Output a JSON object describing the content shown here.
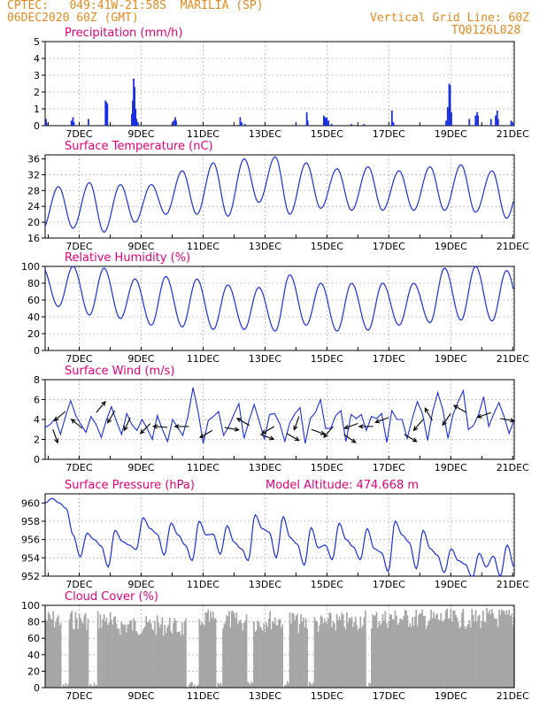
{
  "header": {
    "line1": "CPTEC:   049:41W-21:58S  MARILIA (SP)",
    "line2": "06DEC2020 60Z (GMT)",
    "grid_note": "Vertical Grid Line: 60Z",
    "run_id": "TQ0126L028"
  },
  "colors": {
    "header": "#e08a1e",
    "panel_title": "#e0007a",
    "series": "#1a2fe0",
    "cloud": "#a6a6a6",
    "wind_arrow": "#000000"
  },
  "x_axis": {
    "date_labels": [
      "7DEC",
      "9DEC",
      "11DEC",
      "13DEC",
      "15DEC",
      "17DEC",
      "19DEC",
      "21DEC"
    ],
    "date_positions_days": [
      1,
      3,
      5,
      7,
      9,
      11,
      13,
      15
    ],
    "range_days": [
      -0.1,
      15.05
    ]
  },
  "chart_data": [
    {
      "type": "bar",
      "title": "Precipitation (mm/h)",
      "ylim": [
        0,
        5
      ],
      "yticks": [
        0,
        1,
        2,
        3,
        4,
        5
      ],
      "points": [
        [
          -0.07,
          0.4
        ],
        [
          -0.05,
          0.15
        ],
        [
          0.75,
          0.3
        ],
        [
          0.8,
          0.5
        ],
        [
          0.83,
          0.2
        ],
        [
          1.3,
          0.4
        ],
        [
          1.85,
          1.5
        ],
        [
          1.88,
          1.4
        ],
        [
          1.91,
          1.3
        ],
        [
          2.7,
          0.7
        ],
        [
          2.73,
          1.5
        ],
        [
          2.76,
          2.8
        ],
        [
          2.79,
          2.3
        ],
        [
          2.82,
          1.0
        ],
        [
          2.85,
          0.4
        ],
        [
          2.9,
          0.2
        ],
        [
          4.05,
          0.3
        ],
        [
          4.1,
          0.5
        ],
        [
          4.13,
          0.3
        ],
        [
          6.2,
          0.5
        ],
        [
          6.25,
          0.2
        ],
        [
          6.35,
          0.1
        ],
        [
          8.0,
          0.1
        ],
        [
          8.35,
          0.8
        ],
        [
          8.38,
          0.3
        ],
        [
          8.9,
          0.6
        ],
        [
          8.94,
          0.5
        ],
        [
          8.97,
          0.4
        ],
        [
          9.0,
          0.5
        ],
        [
          9.05,
          0.3
        ],
        [
          9.15,
          0.1
        ],
        [
          9.8,
          0.1
        ],
        [
          10.2,
          0.1
        ],
        [
          11.1,
          0.9
        ],
        [
          11.15,
          0.2
        ],
        [
          12.85,
          0.3
        ],
        [
          12.9,
          1.1
        ],
        [
          12.95,
          2.5
        ],
        [
          12.98,
          2.4
        ],
        [
          13.02,
          0.8
        ],
        [
          13.6,
          0.4
        ],
        [
          13.8,
          0.6
        ],
        [
          13.85,
          0.8
        ],
        [
          13.88,
          0.6
        ],
        [
          14.3,
          0.4
        ],
        [
          14.45,
          0.6
        ],
        [
          14.5,
          0.9
        ],
        [
          14.53,
          0.4
        ],
        [
          14.95,
          0.3
        ],
        [
          15.0,
          0.2
        ]
      ]
    },
    {
      "type": "line",
      "title": "Surface Temperature (nC)",
      "ylim": [
        16,
        37
      ],
      "yticks": [
        16,
        20,
        24,
        28,
        32,
        36
      ],
      "daily_min": [
        18,
        18.5,
        17.5,
        20,
        22,
        22,
        21.5,
        25,
        22,
        23.5,
        23,
        23,
        23,
        23,
        22.5,
        21
      ],
      "daily_max": [
        29,
        30,
        29.5,
        29.5,
        33,
        35,
        36,
        36.5,
        35,
        33.5,
        34,
        33,
        34,
        34.5,
        33,
        32.5
      ]
    },
    {
      "type": "line",
      "title": "Relative Humidity (%)",
      "ylim": [
        0,
        100
      ],
      "yticks": [
        0,
        20,
        40,
        60,
        80,
        100
      ],
      "daily_min": [
        52,
        42,
        38,
        30,
        28,
        25,
        25,
        23,
        30,
        23,
        24,
        30,
        33,
        36,
        35,
        35,
        38
      ],
      "daily_max": [
        100,
        100,
        98,
        85,
        88,
        85,
        78,
        75,
        90,
        80,
        80,
        80,
        80,
        98,
        100,
        95,
        62
      ]
    },
    {
      "type": "line",
      "title": "Surface Wind (m/s)",
      "ylim": [
        0,
        8
      ],
      "yticks": [
        0,
        2,
        4,
        6,
        8
      ],
      "speed": [
        3.2,
        3.5,
        4.1,
        2.5,
        4.3,
        5.9,
        4.4,
        3.5,
        2.7,
        4.3,
        3.5,
        2.2,
        3.9,
        5.3,
        3.8,
        2.5,
        4.6,
        3.5,
        2.9,
        4.0,
        3.1,
        2.0,
        4.4,
        3.0,
        1.8,
        4.0,
        3.2,
        2.4,
        4.3,
        7.2,
        4.8,
        1.6,
        3.9,
        4.3,
        4.8,
        2.4,
        3.3,
        4.5,
        5.6,
        2.1,
        3.9,
        5.5,
        3.8,
        2.0,
        4.5,
        4.6,
        3.6,
        1.8,
        3.7,
        4.6,
        5.2,
        1.6,
        4.1,
        4.7,
        6.0,
        3.1,
        3.1,
        4.4,
        4.9,
        1.8,
        4.5,
        4.1,
        4.5,
        2.9,
        4.3,
        4.1,
        4.6,
        1.7,
        4.9,
        4.0,
        4.0,
        2.1,
        4.1,
        5.8,
        4.6,
        1.9,
        4.8,
        6.7,
        5.0,
        2.1,
        4.5,
        5.8,
        6.9,
        3.0,
        3.4,
        4.5,
        6.3,
        3.3,
        4.6,
        5.7,
        4.3,
        2.6,
        4.0
      ],
      "arrows": [
        {
          "day": 0.15,
          "speed": 3.0,
          "dir_deg": 160
        },
        {
          "day": 0.55,
          "speed": 4.8,
          "dir_deg": 230
        },
        {
          "day": 1.1,
          "speed": 3.1,
          "dir_deg": 310
        },
        {
          "day": 1.55,
          "speed": 4.7,
          "dir_deg": 40
        },
        {
          "day": 2.15,
          "speed": 4.9,
          "dir_deg": 210
        },
        {
          "day": 2.65,
          "speed": 4.2,
          "dir_deg": 205
        },
        {
          "day": 3.3,
          "speed": 3.6,
          "dir_deg": 225
        },
        {
          "day": 3.85,
          "speed": 3.2,
          "dir_deg": 275
        },
        {
          "day": 4.55,
          "speed": 3.3,
          "dir_deg": 270
        },
        {
          "day": 5.3,
          "speed": 2.9,
          "dir_deg": 240
        },
        {
          "day": 5.7,
          "speed": 3.2,
          "dir_deg": 100
        },
        {
          "day": 6.5,
          "speed": 3.4,
          "dir_deg": 300
        },
        {
          "day": 6.85,
          "speed": 2.5,
          "dir_deg": 110
        },
        {
          "day": 7.3,
          "speed": 3.3,
          "dir_deg": 240
        },
        {
          "day": 7.7,
          "speed": 2.6,
          "dir_deg": 120
        },
        {
          "day": 8.1,
          "speed": 4.3,
          "dir_deg": 200
        },
        {
          "day": 8.5,
          "speed": 3.0,
          "dir_deg": 110
        },
        {
          "day": 9.2,
          "speed": 3.3,
          "dir_deg": 220
        },
        {
          "day": 9.55,
          "speed": 2.5,
          "dir_deg": 125
        },
        {
          "day": 10.0,
          "speed": 3.6,
          "dir_deg": 250
        },
        {
          "day": 10.5,
          "speed": 3.3,
          "dir_deg": 270
        },
        {
          "day": 11.0,
          "speed": 4.2,
          "dir_deg": 250
        },
        {
          "day": 11.5,
          "speed": 2.5,
          "dir_deg": 120
        },
        {
          "day": 12.1,
          "speed": 4.0,
          "dir_deg": 220
        },
        {
          "day": 12.4,
          "speed": 3.9,
          "dir_deg": 330
        },
        {
          "day": 13.0,
          "speed": 4.6,
          "dir_deg": 215
        },
        {
          "day": 13.5,
          "speed": 4.7,
          "dir_deg": 300
        },
        {
          "day": 14.3,
          "speed": 4.7,
          "dir_deg": 250
        },
        {
          "day": 14.6,
          "speed": 4.1,
          "dir_deg": 100
        }
      ]
    },
    {
      "type": "line",
      "title": "Surface Pressure (hPa)",
      "annotation": "Model Altitude: 474.668 m",
      "ylim": [
        952,
        961
      ],
      "yticks": [
        952,
        954,
        956,
        958,
        960
      ],
      "hourly6": [
        960.0,
        960.5,
        960.0,
        959.4,
        956.5,
        954.1,
        956.7,
        956.0,
        955.3,
        953.0,
        957.0,
        955.8,
        955.4,
        954.9,
        958.4,
        957.2,
        956.6,
        954.3,
        957.8,
        956.5,
        955.4,
        953.7,
        958.0,
        956.5,
        956.6,
        954.4,
        957.5,
        955.7,
        955.0,
        953.7,
        958.7,
        957.2,
        956.8,
        954.0,
        958.5,
        956.2,
        955.5,
        953.2,
        957.3,
        955.1,
        955.4,
        953.8,
        957.8,
        956.0,
        955.2,
        953.8,
        957.2,
        955.0,
        954.6,
        952.5,
        958.0,
        956.5,
        955.7,
        952.8,
        957.0,
        955.0,
        954.3,
        952.4,
        955.0,
        953.7,
        953.3,
        951.8,
        954.5,
        953.0,
        954.2,
        952.0,
        955.4,
        953.0
      ]
    },
    {
      "type": "bar",
      "title": "Cloud Cover (%)",
      "ylim": [
        0,
        100
      ],
      "yticks": [
        0,
        20,
        40,
        60,
        80,
        100
      ],
      "upper_envelope_by_day": [
        95,
        95,
        88,
        88,
        85,
        95,
        92,
        95,
        90,
        92,
        96,
        97,
        96,
        96,
        97,
        97
      ],
      "clear_spans_days": [
        [
          0.4,
          0.65
        ],
        [
          1.3,
          1.55
        ],
        [
          4.45,
          4.85
        ],
        [
          5.4,
          5.6
        ],
        [
          6.4,
          6.6
        ],
        [
          7.55,
          7.75
        ],
        [
          8.35,
          8.55
        ],
        [
          10.25,
          10.4
        ]
      ]
    }
  ]
}
